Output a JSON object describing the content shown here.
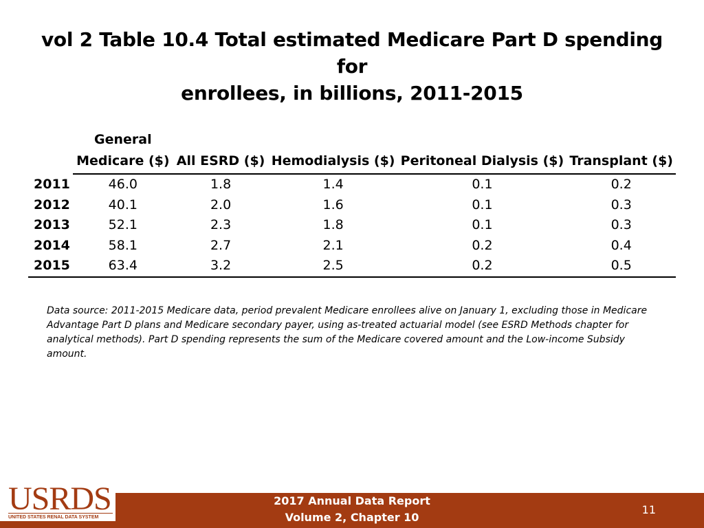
{
  "title": {
    "line1": "vol 2 Table 10.4 Total estimated Medicare Part D spending for",
    "line2": "enrollees, in billions, 2011-2015"
  },
  "table": {
    "headers": [
      {
        "line1": "General",
        "line2": "Medicare ($)"
      },
      {
        "line1": "",
        "line2": "All ESRD ($)"
      },
      {
        "line1": "",
        "line2": "Hemodialysis ($)"
      },
      {
        "line1": "",
        "line2": "Peritoneal Dialysis ($)"
      },
      {
        "line1": "",
        "line2": "Transplant ($)"
      }
    ],
    "rows": [
      {
        "year": "2011",
        "values": [
          "46.0",
          "1.8",
          "1.4",
          "0.1",
          "0.2"
        ]
      },
      {
        "year": "2012",
        "values": [
          "40.1",
          "2.0",
          "1.6",
          "0.1",
          "0.3"
        ]
      },
      {
        "year": "2013",
        "values": [
          "52.1",
          "2.3",
          "1.8",
          "0.1",
          "0.3"
        ]
      },
      {
        "year": "2014",
        "values": [
          "58.1",
          "2.7",
          "2.1",
          "0.2",
          "0.4"
        ]
      },
      {
        "year": "2015",
        "values": [
          "63.4",
          "3.2",
          "2.5",
          "0.2",
          "0.5"
        ]
      }
    ]
  },
  "source_note": "Data source: 2011-2015 Medicare data, period prevalent Medicare enrollees alive on January 1, excluding those in Medicare Advantage Part D plans and Medicare secondary payer, using as-treated actuarial model (see ESRD Methods chapter for analytical methods). Part D spending represents the sum of the Medicare covered amount and the Low-income Subsidy amount.",
  "footer": {
    "line1": "2017 Annual Data Report",
    "line2": "Volume 2, Chapter 10",
    "page_number": "11"
  },
  "logo": {
    "word": "USRDS",
    "subtitle": "UNITED STATES RENAL DATA SYSTEM"
  },
  "colors": {
    "footer_bar": "#a33b12",
    "logo": "#a33b12"
  }
}
